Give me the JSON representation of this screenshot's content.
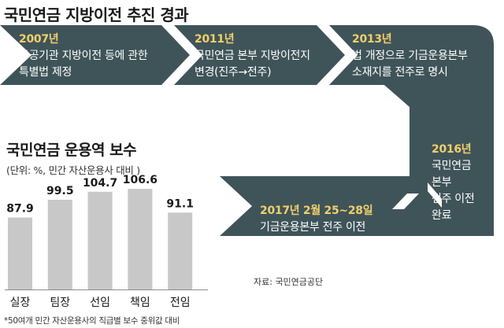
{
  "title": "국민연금 지방이전 추진 경과",
  "colors": {
    "band": "#3f5459",
    "year": "#f2cf6b",
    "bar": "#c8c8c8",
    "bar_stroke": "#8c8c8c"
  },
  "timeline": [
    {
      "year": "2007년",
      "desc": "공공기관 지방이전 등에 관한\n특별법 제정"
    },
    {
      "year": "2011년",
      "desc": "국민연금 본부 지방이전지\n변경(진주→전주)"
    },
    {
      "year": "2013년",
      "desc": "법 개정으로 기금운용본부\n소재지를 전주로 명시"
    },
    {
      "year": "2016년",
      "desc": "국민연금\n본부\n전주 이전\n완료"
    },
    {
      "year": "2017년 2월 25~28일",
      "desc": "기금운용본부 전주 이전"
    }
  ],
  "source": "자료: 국민연금공단",
  "chart": {
    "title": "국민연금 운용역 보수",
    "unit": "(단위: %, 민간 자산운용사 대비 )",
    "footnote": "*50여개 민간 자산운용사의 직급별 보수 중위값 대비"
  },
  "chart_data": {
    "type": "bar",
    "title": "국민연금 운용역 보수",
    "categories": [
      "실장",
      "팀장",
      "선임",
      "책임",
      "전임"
    ],
    "values": [
      87.9,
      99.5,
      104.7,
      106.6,
      91.1
    ],
    "value_labels": [
      "87.9",
      "99.5",
      "104.7",
      "106.6",
      "91.1"
    ],
    "ylabel": "",
    "xlabel": "",
    "unit": "%"
  }
}
